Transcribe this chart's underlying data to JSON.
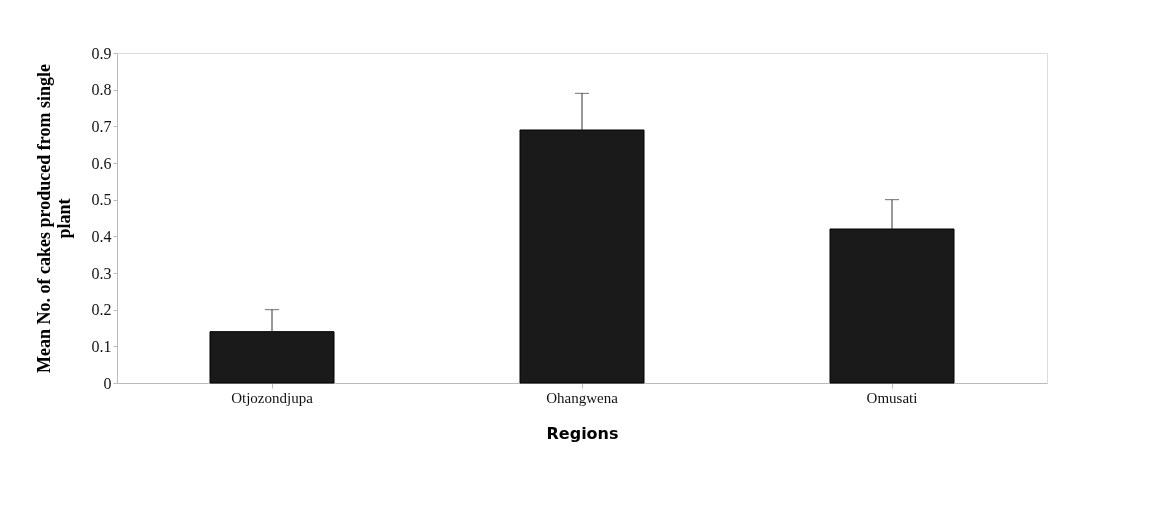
{
  "chart_data": {
    "type": "bar",
    "xlabel": "Regions",
    "ylabel": "Mean No. of cakes produced from single plant",
    "categories": [
      "Otjozondjupa",
      "Ohangwena",
      "Omusati"
    ],
    "values": [
      0.14,
      0.69,
      0.42
    ],
    "errors": [
      [
        0.14,
        0.2
      ],
      [
        0.69,
        0.79
      ],
      [
        0.42,
        0.5
      ]
    ],
    "color": "#1a1a1a",
    "ylim": [
      0,
      0.9
    ],
    "yticks": [
      0,
      0.1,
      0.2,
      0.3,
      0.4,
      0.5,
      0.6,
      0.7,
      0.8,
      0.9
    ],
    "grid": false
  }
}
